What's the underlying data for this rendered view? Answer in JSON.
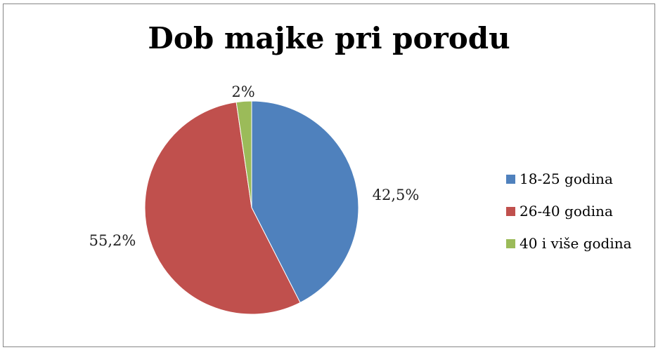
{
  "chart_data": {
    "type": "pie",
    "title": "Dob majke pri porodu",
    "slices": [
      {
        "label": "18-25 godina",
        "value": 42.5,
        "display": "42,5%",
        "color": "#4F81BD"
      },
      {
        "label": "26-40 godina",
        "value": 55.2,
        "display": "55,2%",
        "color": "#C0504D"
      },
      {
        "label": "40 i više godina",
        "value": 2.3,
        "display": "2%",
        "color": "#9BBB59"
      }
    ],
    "legend_position": "right"
  }
}
